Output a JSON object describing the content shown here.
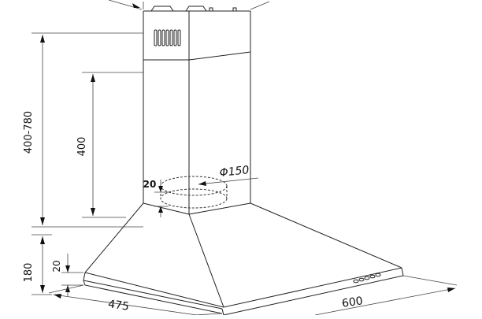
{
  "diagram": {
    "labels": {
      "height_total": "400-780",
      "chimney_height": "400",
      "hood_height": "180",
      "edge_height": "20",
      "duct_offset": "20",
      "duct_diameter": "Φ150",
      "depth": "475",
      "width": "600"
    }
  }
}
